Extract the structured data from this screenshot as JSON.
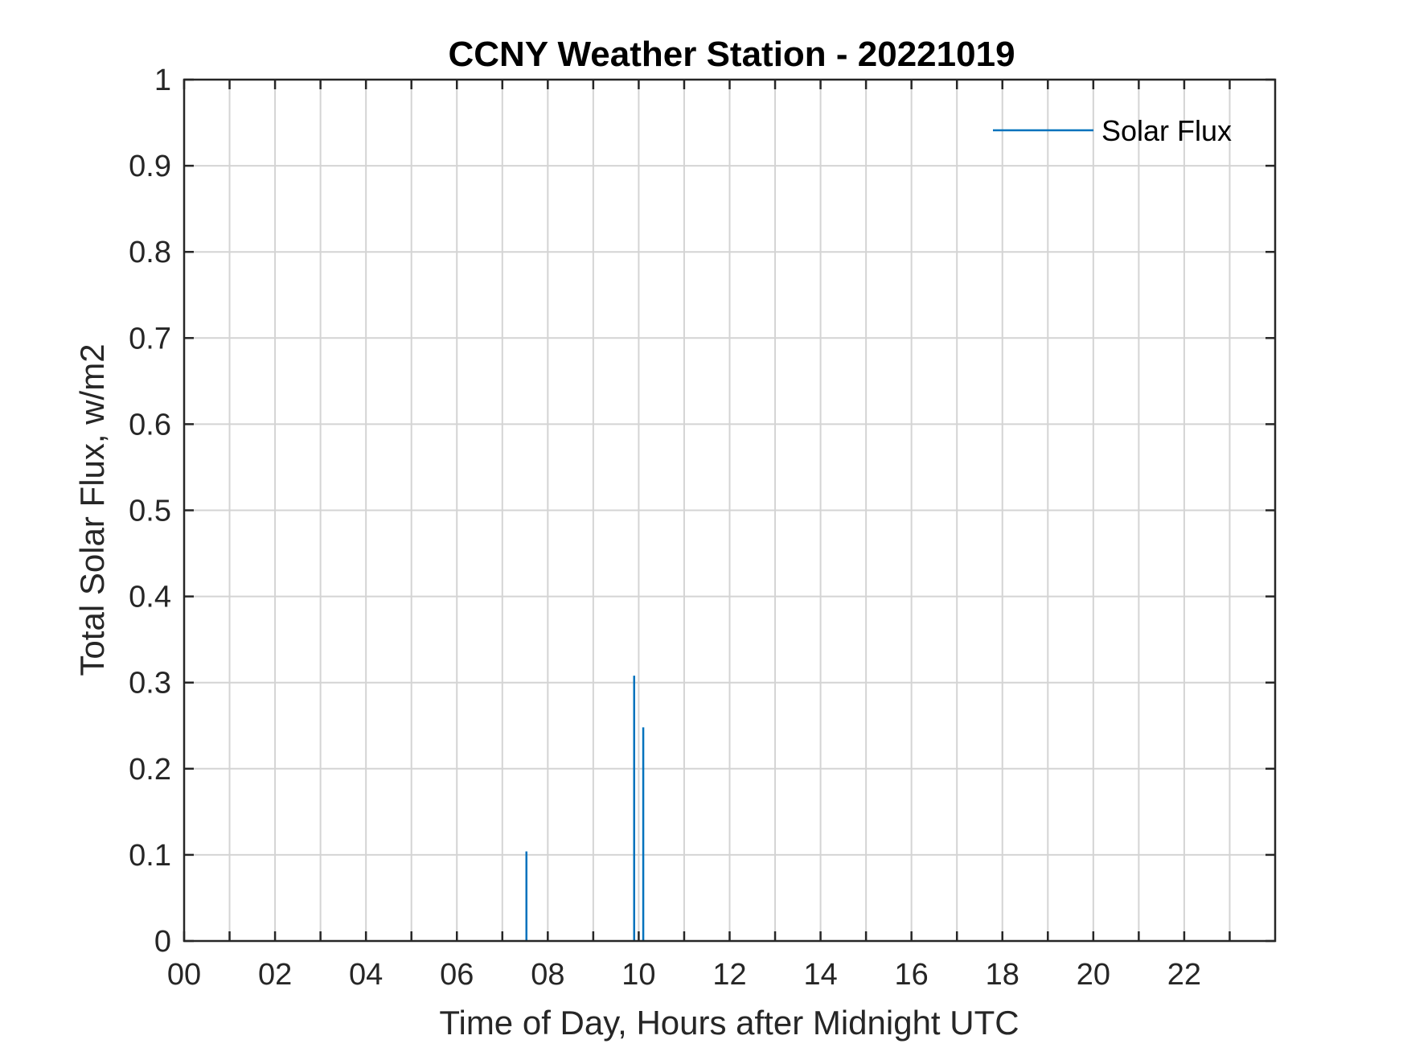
{
  "chart_data": {
    "type": "line",
    "title": "CCNY Weather Station - 20221019",
    "xlabel": "Time of Day, Hours after Midnight UTC",
    "ylabel": "Total Solar Flux, w/m2",
    "xlim": [
      0,
      24
    ],
    "ylim": [
      0,
      1
    ],
    "x_ticks": [
      0,
      2,
      4,
      6,
      8,
      10,
      12,
      14,
      16,
      18,
      20,
      22
    ],
    "x_tick_labels": [
      "00",
      "02",
      "04",
      "06",
      "08",
      "10",
      "12",
      "14",
      "16",
      "18",
      "20",
      "22"
    ],
    "y_ticks": [
      0,
      0.1,
      0.2,
      0.3,
      0.4,
      0.5,
      0.6,
      0.7,
      0.8,
      0.9,
      1
    ],
    "y_tick_labels": [
      "0",
      "0.1",
      "0.2",
      "0.3",
      "0.4",
      "0.5",
      "0.6",
      "0.7",
      "0.8",
      "0.9",
      "1"
    ],
    "grid": true,
    "legend_position": "top-right",
    "series": [
      {
        "name": "Solar Flux",
        "color": "#0072BD",
        "spikes": [
          {
            "x": 7.53,
            "y": 0.104
          },
          {
            "x": 9.9,
            "y": 0.308
          },
          {
            "x": 10.1,
            "y": 0.248
          }
        ]
      }
    ]
  }
}
